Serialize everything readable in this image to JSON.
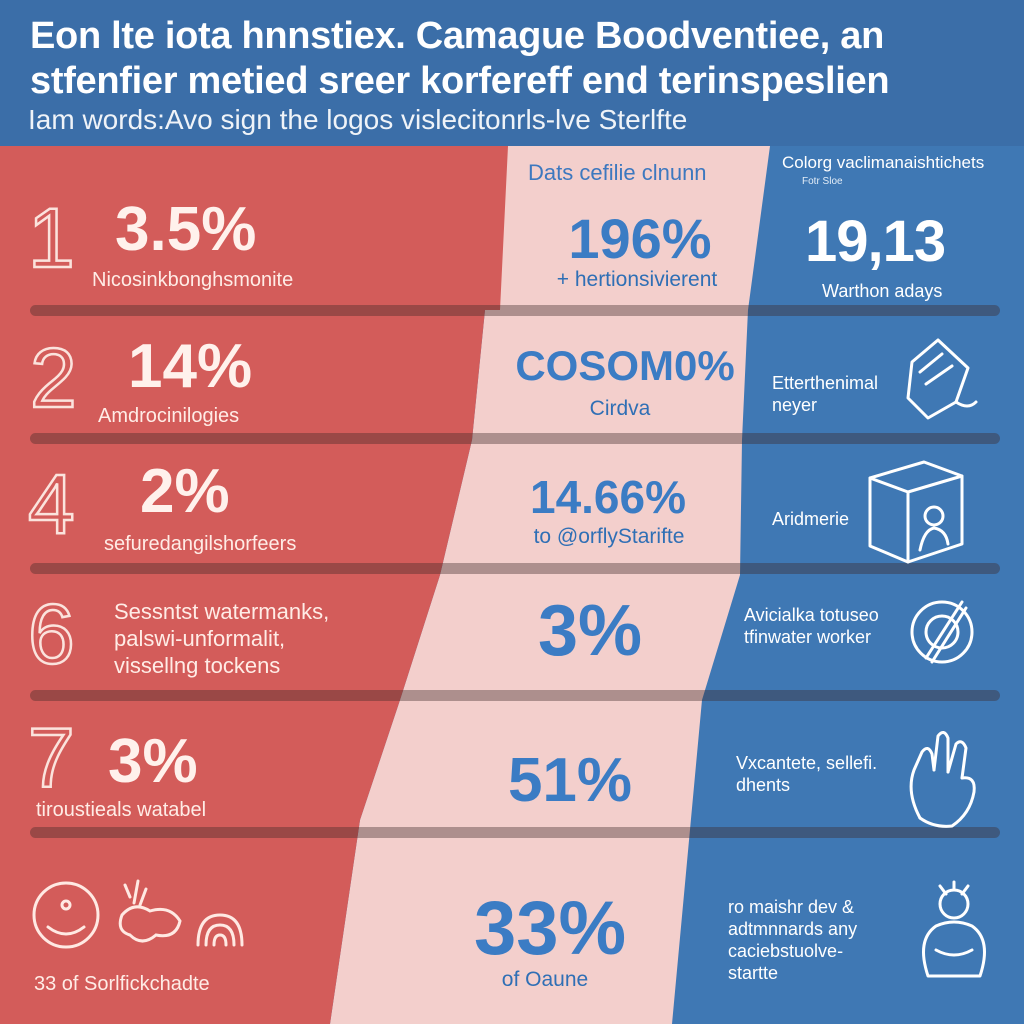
{
  "header": {
    "title": "Eon lte iota hnnstiex. Camague Boodventiee, an stfenfier metied sreer korfereff end terinspeslien",
    "subtitle": "Iam words:Avo sign the logos vislecitonrls-lve Sterlfte"
  },
  "colors": {
    "red": "#d35c5a",
    "pink": "#f3cfcc",
    "blue": "#3f78b4",
    "header_blue": "#3b6ea8"
  },
  "middle": {
    "heading": "Dats cefilie clnunn",
    "rows": [
      {
        "value": "196%",
        "caption": "+ hertionsivierent"
      },
      {
        "value": "COSOM0%",
        "caption": "Cirdva"
      },
      {
        "value": "14.66%",
        "caption": "to @orflyStarifte"
      },
      {
        "value": "3%",
        "caption": ""
      },
      {
        "value": "51%",
        "caption": ""
      },
      {
        "value": "33%",
        "caption": "of Oaune"
      }
    ]
  },
  "left": {
    "rows": [
      {
        "number": "1",
        "value": "3.5%",
        "caption": "Nicosinkbonghsmonite"
      },
      {
        "number": "2",
        "value": "14%",
        "caption": "Amdrocinilogies"
      },
      {
        "number": "4",
        "value": "2%",
        "caption": "sefuredangilshorfeers"
      },
      {
        "number": "6",
        "value": "",
        "caption": "Sessntst watermanks, palswi-unformalit, vissellng tockens"
      },
      {
        "number": "7",
        "value": "3%",
        "caption": "tiroustieals watabel"
      },
      {
        "number": "",
        "value": "",
        "caption": "33 of Sorlfickchadte"
      }
    ]
  },
  "right": {
    "heading": "Colorg vaclimanaishtichets",
    "subheading": "Fotr Sloe",
    "rows": [
      {
        "value": "19,13",
        "caption": "Warthon adays",
        "icon": ""
      },
      {
        "value": "",
        "caption": "Etterthenimal neyer",
        "icon": "finger-tap-icon"
      },
      {
        "value": "",
        "caption": "Aridmerie",
        "icon": "box-person-icon"
      },
      {
        "value": "",
        "caption": "Avicialka totuseo tfinwater worker",
        "icon": "wrench-gear-icon"
      },
      {
        "value": "",
        "caption": "Vxcantete, sellefi. dhents",
        "icon": "hand-icon"
      },
      {
        "value": "",
        "caption": "ro maishr dev & adtmnnards any caciebstuolve-startte",
        "icon": "person-sketch-icon"
      }
    ]
  }
}
